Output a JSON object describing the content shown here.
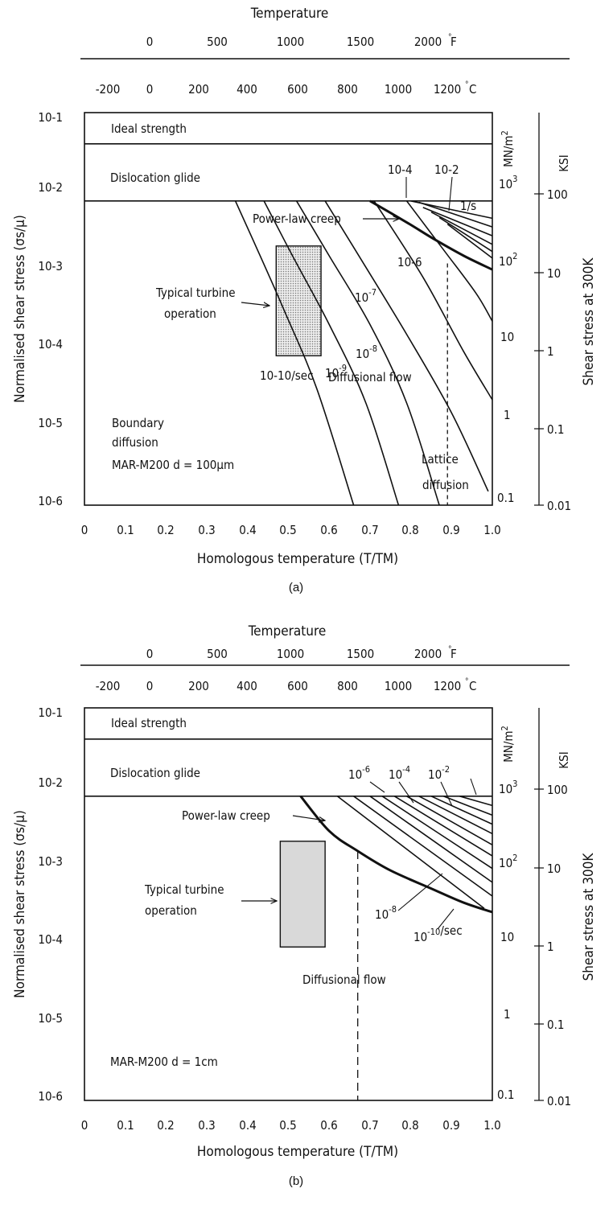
{
  "chart_data": [
    {
      "type": "line",
      "panel_label": "(a)",
      "top_axis_title": "Temperature",
      "fahrenheit_ticks": [
        "0",
        "500",
        "1000",
        "1500",
        "2000",
        "F"
      ],
      "celsius_ticks": [
        "-200",
        "0",
        "200",
        "400",
        "600",
        "800",
        "1000",
        "1200",
        "C"
      ],
      "x_ticks": [
        "0",
        "0.1",
        "0.2",
        "0.3",
        "0.4",
        "0.5",
        "0.6",
        "0.7",
        "0.8",
        "0.9",
        "1.0"
      ],
      "xlim": [
        0,
        1
      ],
      "y_ticks": [
        "10-1",
        "10-2",
        "10-3",
        "10-4",
        "10-5",
        "10-6"
      ],
      "ylim": [
        1e-06,
        0.1
      ],
      "yscale": "log",
      "xlabel": "Homologous temperature (T/TM)",
      "ylabel": "Normalised shear stress (σs/μ)",
      "right_mn_ticks": [
        "10^3",
        "10^2",
        "10",
        "1",
        "0.1"
      ],
      "right_mn_unit": "MN/m2",
      "right_ksi_ticks": [
        "100",
        "10",
        "1",
        "0.1",
        "0.01"
      ],
      "right_ksi_unit": "KSI",
      "right_axis_label": "Shear stress at 300K",
      "regions": {
        "ideal": "Ideal strength",
        "glide": "Dislocation glide",
        "plc": "Power-law creep",
        "turbine": "Typical turbine operation",
        "diff_flow": "Diffusional flow",
        "boundary": "Boundary diffusion",
        "lattice": "Lattice diffusion",
        "material": "MAR-M200 d = 100µm"
      },
      "contour_labels": [
        "10-2",
        "10-4",
        "1/s",
        "10-6",
        "10-7",
        "10-8",
        "10-9",
        "10-10/sec"
      ],
      "ideal_strength_y": 0.04,
      "glide_limit_y": 0.0075,
      "lattice_boundary_x": 0.89,
      "turbine_box": {
        "x": [
          0.47,
          0.58
        ],
        "y": [
          8e-05,
          0.002
        ]
      },
      "series": [
        {
          "x": [
            0.37,
            0.42,
            0.49,
            0.57,
            0.66
          ],
          "y": [
            0.0075,
            0.002,
            0.0003,
            3e-05,
            1e-06
          ]
        },
        {
          "x": [
            0.44,
            0.51,
            0.6,
            0.69,
            0.77
          ],
          "y": [
            0.0075,
            0.0015,
            0.0002,
            2e-05,
            1e-06
          ]
        },
        {
          "x": [
            0.52,
            0.6,
            0.7,
            0.79,
            0.87
          ],
          "y": [
            0.0075,
            0.0015,
            0.0002,
            2e-05,
            1e-06
          ]
        },
        {
          "x": [
            0.59,
            0.68,
            0.79,
            0.9,
            0.99
          ],
          "y": [
            0.0075,
            0.0013,
            0.00015,
            1.5e-05,
            1.5e-06
          ]
        },
        {
          "x": [
            0.71,
            0.83,
            0.93,
            1.0
          ],
          "y": [
            0.0075,
            0.0008,
            9e-05,
            2.2e-05
          ]
        },
        {
          "x": [
            0.79,
            0.88,
            0.96,
            1.0
          ],
          "y": [
            0.0075,
            0.0018,
            0.0005,
            0.00022
          ]
        },
        {
          "x": [
            0.7,
            0.79,
            0.86,
            0.93,
            1.0
          ],
          "y": [
            0.0075,
            0.004,
            0.0024,
            0.0015,
            0.001
          ]
        },
        {
          "x": [
            0.8,
            1.0
          ],
          "y": [
            0.0075,
            0.0045
          ]
        },
        {
          "x": [
            0.82,
            1.0
          ],
          "y": [
            0.0072,
            0.0035
          ]
        },
        {
          "x": [
            0.83,
            1.0
          ],
          "y": [
            0.0062,
            0.0027
          ]
        },
        {
          "x": [
            0.85,
            1.0
          ],
          "y": [
            0.0054,
            0.0021
          ]
        },
        {
          "x": [
            0.87,
            1.0
          ],
          "y": [
            0.0046,
            0.0017
          ]
        },
        {
          "x": [
            0.89,
            1.0
          ],
          "y": [
            0.0038,
            0.0014
          ]
        }
      ]
    },
    {
      "type": "line",
      "panel_label": "(b)",
      "top_axis_title": "Temperature",
      "fahrenheit_ticks": [
        "0",
        "500",
        "1000",
        "1500",
        "2000",
        "F"
      ],
      "celsius_ticks": [
        "-200",
        "0",
        "200",
        "400",
        "600",
        "800",
        "1000",
        "1200",
        "C"
      ],
      "x_ticks": [
        "0",
        "0.1",
        "0.2",
        "0.3",
        "0.4",
        "0.5",
        "0.6",
        "0.7",
        "0.8",
        "0.9",
        "1.0"
      ],
      "xlim": [
        0,
        1
      ],
      "y_ticks": [
        "10-1",
        "10-2",
        "10-3",
        "10-4",
        "10-5",
        "10-6"
      ],
      "ylim": [
        1e-06,
        0.1
      ],
      "yscale": "log",
      "xlabel": "Homologous temperature (T/TM)",
      "ylabel": "Normalised shear stress (σs/μ)",
      "right_mn_ticks": [
        "10^3",
        "10^2",
        "10",
        "1",
        "0.1"
      ],
      "right_mn_unit": "MN/m2",
      "right_ksi_ticks": [
        "100",
        "10",
        "1",
        "0.1",
        "0.01"
      ],
      "right_ksi_unit": "KSI",
      "right_axis_label": "Shear stress at 300K",
      "regions": {
        "ideal": "Ideal strength",
        "glide": "Dislocation glide",
        "plc": "Power-law creep",
        "turbine": "Typical turbine operation",
        "diff_flow": "Diffusional flow",
        "material": "MAR-M200 d = 1cm"
      },
      "contour_labels": [
        "10-6",
        "10-4",
        "10-2",
        "10-8",
        "10-10/sec"
      ],
      "ideal_strength_y": 0.04,
      "glide_limit_y": 0.0075,
      "diffusion_boundary_x": 0.67,
      "turbine_box": {
        "x": [
          0.48,
          0.59
        ],
        "y": [
          9e-05,
          0.002
        ]
      },
      "series": [
        {
          "x": [
            0.53,
            0.6,
            0.67,
            0.75,
            0.85,
            0.93,
            1.0
          ],
          "y": [
            0.0075,
            0.0027,
            0.0015,
            0.00085,
            0.0005,
            0.00033,
            0.00025
          ]
        },
        {
          "x": [
            0.62,
            0.98
          ],
          "y": [
            0.0075,
            0.00028
          ]
        },
        {
          "x": [
            0.66,
            1.0
          ],
          "y": [
            0.0075,
            0.0004
          ]
        },
        {
          "x": [
            0.7,
            1.0
          ],
          "y": [
            0.0075,
            0.0006
          ]
        },
        {
          "x": [
            0.73,
            1.0
          ],
          "y": [
            0.0075,
            0.0009
          ]
        },
        {
          "x": [
            0.76,
            1.0
          ],
          "y": [
            0.0075,
            0.0013
          ]
        },
        {
          "x": [
            0.79,
            1.0
          ],
          "y": [
            0.0075,
            0.0018
          ]
        },
        {
          "x": [
            0.82,
            1.0
          ],
          "y": [
            0.0075,
            0.0025
          ]
        },
        {
          "x": [
            0.85,
            1.0
          ],
          "y": [
            0.0075,
            0.0033
          ]
        },
        {
          "x": [
            0.88,
            1.0
          ],
          "y": [
            0.0075,
            0.0043
          ]
        },
        {
          "x": [
            0.92,
            1.0
          ],
          "y": [
            0.0075,
            0.0057
          ]
        }
      ]
    }
  ]
}
